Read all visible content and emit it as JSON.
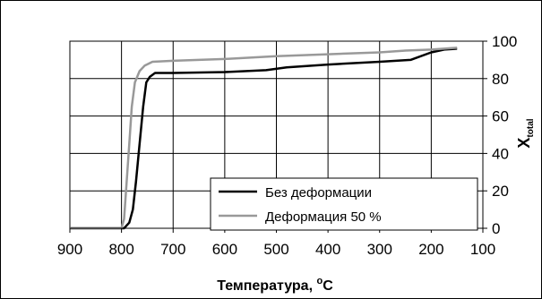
{
  "chart_data": {
    "type": "line",
    "xlabel_main": "Температура, ",
    "xlabel_sup": "o",
    "xlabel_unit": "C",
    "ylabel_main": "X",
    "ylabel_sub": "total",
    "xlim": [
      900,
      100
    ],
    "ylim": [
      0,
      100
    ],
    "x_ticks": [
      900,
      800,
      700,
      600,
      500,
      400,
      300,
      200,
      100
    ],
    "y_ticks": [
      0,
      20,
      40,
      60,
      80,
      100
    ],
    "grid": true,
    "legend_placement": "center-right",
    "series": [
      {
        "name": "Без деформации",
        "color": "#000000",
        "points": [
          [
            900,
            0
          ],
          [
            795,
            0
          ],
          [
            785,
            3
          ],
          [
            778,
            10
          ],
          [
            772,
            25
          ],
          [
            765,
            45
          ],
          [
            758,
            65
          ],
          [
            752,
            78
          ],
          [
            745,
            81
          ],
          [
            735,
            83
          ],
          [
            700,
            83
          ],
          [
            600,
            83.5
          ],
          [
            520,
            84.5
          ],
          [
            480,
            86
          ],
          [
            400,
            87.5
          ],
          [
            300,
            89
          ],
          [
            240,
            90
          ],
          [
            200,
            94
          ],
          [
            175,
            95.5
          ],
          [
            150,
            96
          ]
        ]
      },
      {
        "name": "Деформация 50 %",
        "color": "#999999",
        "points": [
          [
            900,
            0
          ],
          [
            800,
            0
          ],
          [
            795,
            5
          ],
          [
            790,
            25
          ],
          [
            785,
            45
          ],
          [
            780,
            65
          ],
          [
            774,
            78
          ],
          [
            765,
            84
          ],
          [
            755,
            87
          ],
          [
            740,
            89
          ],
          [
            700,
            89.5
          ],
          [
            600,
            90.5
          ],
          [
            500,
            92
          ],
          [
            400,
            93
          ],
          [
            300,
            94
          ],
          [
            250,
            95
          ],
          [
            200,
            95.5
          ],
          [
            150,
            96.5
          ]
        ]
      }
    ]
  }
}
